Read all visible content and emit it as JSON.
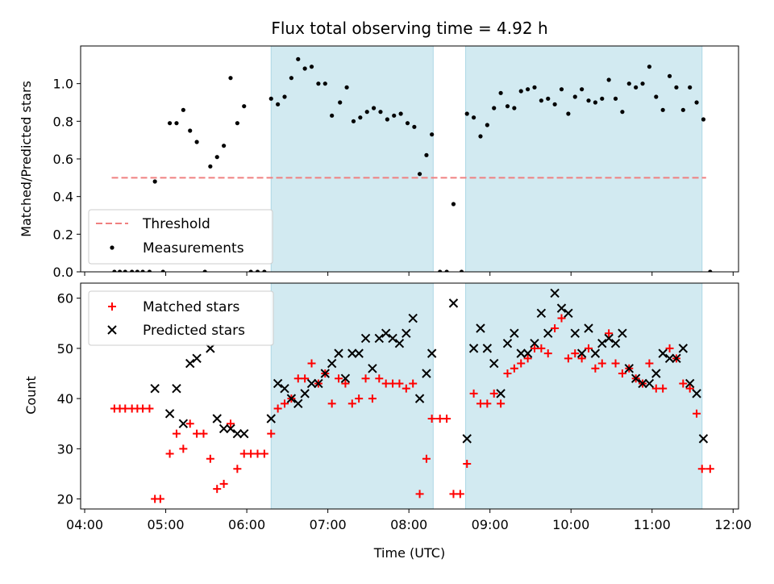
{
  "figure": {
    "title": "Flux total observing time = 4.92 h",
    "xlabel": "Time (UTC)",
    "x_ticks": [
      "04:00",
      "05:00",
      "06:00",
      "07:00",
      "08:00",
      "09:00",
      "10:00",
      "11:00",
      "12:00"
    ]
  },
  "colors": {
    "threshold": "#f08080",
    "measurements": "#000000",
    "matched": "#ff0000",
    "predicted": "#000000",
    "shade": "#add8e6"
  },
  "chart_data": [
    {
      "type": "scatter",
      "panel": "top",
      "ylabel": "Matched/Predicted stars",
      "xlim": [
        "03:57",
        "12:04"
      ],
      "ylim": [
        0,
        1.2
      ],
      "y_ticks": [
        "0.0",
        "0.2",
        "0.4",
        "0.6",
        "0.8",
        "1.0"
      ],
      "grid": false,
      "legend_position": "lower-left",
      "observing_windows": [
        {
          "start": "06:18",
          "end": "08:18"
        },
        {
          "start": "08:42",
          "end": "11:37"
        }
      ],
      "threshold": {
        "name": "Threshold",
        "y": 0.5,
        "x_start": "04:20",
        "x_end": "11:40"
      },
      "series": [
        {
          "name": "Measurements",
          "marker": "dot",
          "points": [
            [
              "04:22",
              0
            ],
            [
              "04:26",
              0
            ],
            [
              "04:30",
              0
            ],
            [
              "04:35",
              0
            ],
            [
              "04:39",
              0
            ],
            [
              "04:43",
              0
            ],
            [
              "04:48",
              0
            ],
            [
              "04:52",
              0.48
            ],
            [
              "04:58",
              0
            ],
            [
              "05:03",
              0.79
            ],
            [
              "05:08",
              0.79
            ],
            [
              "05:13",
              0.86
            ],
            [
              "05:18",
              0.75
            ],
            [
              "05:23",
              0.69
            ],
            [
              "05:29",
              0
            ],
            [
              "05:33",
              0.56
            ],
            [
              "05:38",
              0.61
            ],
            [
              "05:43",
              0.67
            ],
            [
              "05:48",
              1.03
            ],
            [
              "05:53",
              0.79
            ],
            [
              "05:58",
              0.88
            ],
            [
              "06:03",
              0
            ],
            [
              "06:08",
              0
            ],
            [
              "06:13",
              0
            ],
            [
              "06:18",
              0.92
            ],
            [
              "06:23",
              0.89
            ],
            [
              "06:28",
              0.93
            ],
            [
              "06:33",
              1.03
            ],
            [
              "06:38",
              1.13
            ],
            [
              "06:43",
              1.08
            ],
            [
              "06:48",
              1.09
            ],
            [
              "06:53",
              1.0
            ],
            [
              "06:58",
              1.0
            ],
            [
              "07:03",
              0.83
            ],
            [
              "07:09",
              0.9
            ],
            [
              "07:14",
              0.98
            ],
            [
              "07:19",
              0.8
            ],
            [
              "07:24",
              0.82
            ],
            [
              "07:29",
              0.85
            ],
            [
              "07:34",
              0.87
            ],
            [
              "07:39",
              0.85
            ],
            [
              "07:44",
              0.81
            ],
            [
              "07:49",
              0.83
            ],
            [
              "07:54",
              0.84
            ],
            [
              "07:59",
              0.79
            ],
            [
              "08:04",
              0.77
            ],
            [
              "08:08",
              0.52
            ],
            [
              "08:13",
              0.62
            ],
            [
              "08:17",
              0.73
            ],
            [
              "08:23",
              0
            ],
            [
              "08:28",
              0
            ],
            [
              "08:33",
              0.36
            ],
            [
              "08:39",
              0
            ],
            [
              "08:43",
              0.84
            ],
            [
              "08:48",
              0.82
            ],
            [
              "08:53",
              0.72
            ],
            [
              "08:58",
              0.78
            ],
            [
              "09:03",
              0.87
            ],
            [
              "09:08",
              0.95
            ],
            [
              "09:13",
              0.88
            ],
            [
              "09:18",
              0.87
            ],
            [
              "09:23",
              0.96
            ],
            [
              "09:28",
              0.97
            ],
            [
              "09:33",
              0.98
            ],
            [
              "09:38",
              0.91
            ],
            [
              "09:43",
              0.92
            ],
            [
              "09:48",
              0.89
            ],
            [
              "09:53",
              0.97
            ],
            [
              "09:58",
              0.84
            ],
            [
              "10:03",
              0.93
            ],
            [
              "10:08",
              0.97
            ],
            [
              "10:13",
              0.91
            ],
            [
              "10:18",
              0.9
            ],
            [
              "10:23",
              0.92
            ],
            [
              "10:28",
              1.02
            ],
            [
              "10:33",
              0.92
            ],
            [
              "10:38",
              0.85
            ],
            [
              "10:43",
              1.0
            ],
            [
              "10:48",
              0.98
            ],
            [
              "10:53",
              1.0
            ],
            [
              "10:58",
              1.09
            ],
            [
              "11:03",
              0.93
            ],
            [
              "11:08",
              0.86
            ],
            [
              "11:13",
              1.04
            ],
            [
              "11:18",
              0.98
            ],
            [
              "11:23",
              0.86
            ],
            [
              "11:28",
              0.98
            ],
            [
              "11:33",
              0.9
            ],
            [
              "11:38",
              0.81
            ],
            [
              "11:43",
              0
            ]
          ]
        }
      ]
    },
    {
      "type": "scatter",
      "panel": "bottom",
      "ylabel": "Count",
      "xlim": [
        "03:57",
        "12:04"
      ],
      "ylim": [
        18,
        63
      ],
      "y_ticks": [
        "20",
        "30",
        "40",
        "50",
        "60"
      ],
      "grid": false,
      "legend_position": "upper-left",
      "observing_windows": [
        {
          "start": "06:18",
          "end": "08:18"
        },
        {
          "start": "08:42",
          "end": "11:37"
        }
      ],
      "series": [
        {
          "name": "Matched stars",
          "marker": "plus",
          "points": [
            [
              "04:22",
              38
            ],
            [
              "04:26",
              38
            ],
            [
              "04:30",
              38
            ],
            [
              "04:35",
              38
            ],
            [
              "04:39",
              38
            ],
            [
              "04:43",
              38
            ],
            [
              "04:48",
              38
            ],
            [
              "04:52",
              20
            ],
            [
              "04:56",
              20
            ],
            [
              "05:03",
              29
            ],
            [
              "05:08",
              33
            ],
            [
              "05:13",
              30
            ],
            [
              "05:18",
              35
            ],
            [
              "05:23",
              33
            ],
            [
              "05:28",
              33
            ],
            [
              "05:33",
              28
            ],
            [
              "05:38",
              22
            ],
            [
              "05:43",
              23
            ],
            [
              "05:48",
              35
            ],
            [
              "05:53",
              26
            ],
            [
              "05:58",
              29
            ],
            [
              "06:03",
              29
            ],
            [
              "06:08",
              29
            ],
            [
              "06:13",
              29
            ],
            [
              "06:18",
              33
            ],
            [
              "06:23",
              38
            ],
            [
              "06:28",
              39
            ],
            [
              "06:33",
              40
            ],
            [
              "06:38",
              44
            ],
            [
              "06:43",
              44
            ],
            [
              "06:48",
              47
            ],
            [
              "06:53",
              43
            ],
            [
              "06:58",
              45
            ],
            [
              "07:03",
              39
            ],
            [
              "07:08",
              44
            ],
            [
              "07:13",
              43
            ],
            [
              "07:18",
              39
            ],
            [
              "07:23",
              40
            ],
            [
              "07:28",
              44
            ],
            [
              "07:33",
              40
            ],
            [
              "07:38",
              44
            ],
            [
              "07:43",
              43
            ],
            [
              "07:48",
              43
            ],
            [
              "07:53",
              43
            ],
            [
              "07:58",
              42
            ],
            [
              "08:03",
              43
            ],
            [
              "08:08",
              21
            ],
            [
              "08:13",
              28
            ],
            [
              "08:17",
              36
            ],
            [
              "08:23",
              36
            ],
            [
              "08:28",
              36
            ],
            [
              "08:33",
              21
            ],
            [
              "08:38",
              21
            ],
            [
              "08:43",
              27
            ],
            [
              "08:48",
              41
            ],
            [
              "08:53",
              39
            ],
            [
              "08:58",
              39
            ],
            [
              "09:03",
              41
            ],
            [
              "09:08",
              39
            ],
            [
              "09:13",
              45
            ],
            [
              "09:18",
              46
            ],
            [
              "09:23",
              47
            ],
            [
              "09:28",
              48
            ],
            [
              "09:33",
              50
            ],
            [
              "09:38",
              50
            ],
            [
              "09:43",
              49
            ],
            [
              "09:48",
              54
            ],
            [
              "09:53",
              56
            ],
            [
              "09:58",
              48
            ],
            [
              "10:03",
              49
            ],
            [
              "10:08",
              48
            ],
            [
              "10:13",
              50
            ],
            [
              "10:18",
              46
            ],
            [
              "10:23",
              47
            ],
            [
              "10:28",
              53
            ],
            [
              "10:33",
              47
            ],
            [
              "10:38",
              45
            ],
            [
              "10:43",
              46
            ],
            [
              "10:48",
              44
            ],
            [
              "10:53",
              43
            ],
            [
              "10:58",
              47
            ],
            [
              "11:03",
              42
            ],
            [
              "11:08",
              42
            ],
            [
              "11:13",
              50
            ],
            [
              "11:18",
              48
            ],
            [
              "11:23",
              43
            ],
            [
              "11:28",
              42
            ],
            [
              "11:33",
              37
            ],
            [
              "11:37",
              26
            ],
            [
              "11:43",
              26
            ]
          ]
        },
        {
          "name": "Predicted stars",
          "marker": "x",
          "points": [
            [
              "04:52",
              42
            ],
            [
              "05:03",
              37
            ],
            [
              "05:08",
              42
            ],
            [
              "05:13",
              35
            ],
            [
              "05:18",
              47
            ],
            [
              "05:23",
              48
            ],
            [
              "05:33",
              50
            ],
            [
              "05:38",
              36
            ],
            [
              "05:43",
              34
            ],
            [
              "05:48",
              34
            ],
            [
              "05:53",
              33
            ],
            [
              "05:58",
              33
            ],
            [
              "06:18",
              36
            ],
            [
              "06:23",
              43
            ],
            [
              "06:28",
              42
            ],
            [
              "06:33",
              40
            ],
            [
              "06:38",
              39
            ],
            [
              "06:43",
              41
            ],
            [
              "06:48",
              43
            ],
            [
              "06:53",
              43
            ],
            [
              "06:58",
              45
            ],
            [
              "07:03",
              47
            ],
            [
              "07:08",
              49
            ],
            [
              "07:13",
              44
            ],
            [
              "07:18",
              49
            ],
            [
              "07:23",
              49
            ],
            [
              "07:28",
              52
            ],
            [
              "07:33",
              46
            ],
            [
              "07:38",
              52
            ],
            [
              "07:43",
              53
            ],
            [
              "07:48",
              52
            ],
            [
              "07:53",
              51
            ],
            [
              "07:58",
              53
            ],
            [
              "08:03",
              56
            ],
            [
              "08:08",
              40
            ],
            [
              "08:13",
              45
            ],
            [
              "08:17",
              49
            ],
            [
              "08:33",
              59
            ],
            [
              "08:43",
              32
            ],
            [
              "08:48",
              50
            ],
            [
              "08:53",
              54
            ],
            [
              "08:58",
              50
            ],
            [
              "09:03",
              47
            ],
            [
              "09:08",
              41
            ],
            [
              "09:13",
              51
            ],
            [
              "09:18",
              53
            ],
            [
              "09:23",
              49
            ],
            [
              "09:28",
              49
            ],
            [
              "09:33",
              51
            ],
            [
              "09:38",
              57
            ],
            [
              "09:43",
              53
            ],
            [
              "09:48",
              61
            ],
            [
              "09:53",
              58
            ],
            [
              "09:58",
              57
            ],
            [
              "10:03",
              53
            ],
            [
              "10:08",
              49
            ],
            [
              "10:13",
              54
            ],
            [
              "10:18",
              49
            ],
            [
              "10:23",
              51
            ],
            [
              "10:28",
              52
            ],
            [
              "10:33",
              51
            ],
            [
              "10:38",
              53
            ],
            [
              "10:43",
              46
            ],
            [
              "10:48",
              44
            ],
            [
              "10:53",
              43
            ],
            [
              "10:58",
              43
            ],
            [
              "11:03",
              45
            ],
            [
              "11:08",
              49
            ],
            [
              "11:13",
              48
            ],
            [
              "11:18",
              48
            ],
            [
              "11:23",
              50
            ],
            [
              "11:28",
              43
            ],
            [
              "11:33",
              41
            ],
            [
              "11:38",
              32
            ]
          ]
        }
      ]
    }
  ]
}
